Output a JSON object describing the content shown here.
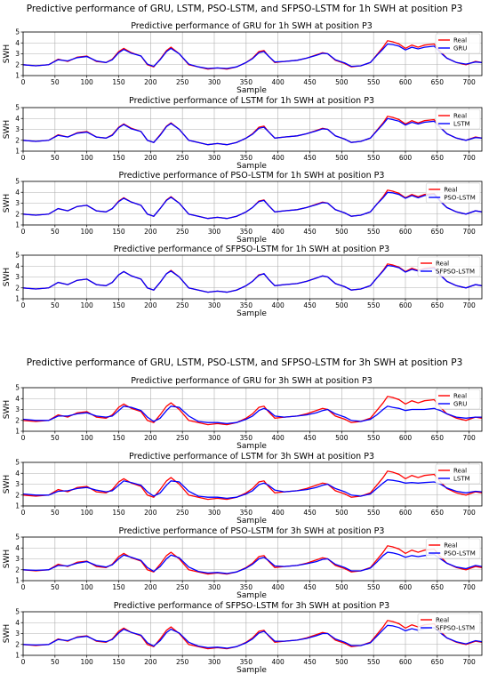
{
  "figures": [
    {
      "suptitle": "Predictive performance of GRU, LSTM, PSO-LSTM, and SFPSO-LSTM for 1h SWH at position P3",
      "panels": [
        {
          "title": "Predictive performance of GRU for 1h SWH at position P3",
          "legend": [
            "Real",
            "GRU"
          ]
        },
        {
          "title": "Predictive performance of LSTM for 1h SWH at position P3",
          "legend": [
            "Real",
            "LSTM"
          ]
        },
        {
          "title": "Predictive performance of PSO-LSTM for 1h SWH at position P3",
          "legend": [
            "Real",
            "PSO-LSTM"
          ]
        },
        {
          "title": "Predictive performance of SFPSO-LSTM for 1h SWH at position P3",
          "legend": [
            "Real",
            "SFPSO-LSTM"
          ]
        }
      ]
    },
    {
      "suptitle": "Predictive performance of GRU, LSTM, PSO-LSTM, and SFPSO-LSTM for 3h SWH at position P3",
      "panels": [
        {
          "title": "Predictive performance of GRU for 3h SWH at position P3",
          "legend": [
            "Real",
            "GRU"
          ]
        },
        {
          "title": "Predictive performance of LSTM for 3h SWH at position P3",
          "legend": [
            "Real",
            "LSTM"
          ]
        },
        {
          "title": "Predictive performance of PSO-LSTM for 3h SWH at position P3",
          "legend": [
            "Real",
            "PSO-LSTM"
          ]
        },
        {
          "title": "Predictive performance of SFPSO-LSTM for 3h SWH at position P3",
          "legend": [
            "Real",
            "SFPSO-LSTM"
          ]
        }
      ]
    }
  ],
  "chart_data": {
    "type": "line",
    "xlabel": "Sample",
    "ylabel": "SWH",
    "xlim": [
      0,
      720
    ],
    "ylim": [
      1,
      5
    ],
    "xticks": [
      0,
      50,
      100,
      150,
      200,
      250,
      300,
      350,
      400,
      450,
      500,
      550,
      600,
      650,
      700
    ],
    "yticks": [
      1,
      2,
      3,
      4,
      5
    ],
    "grid": true,
    "legend_position": "top-right",
    "colors": {
      "real": "#ff0000",
      "pred": "#0000ff"
    },
    "real": {
      "x": [
        0,
        20,
        40,
        55,
        70,
        85,
        100,
        115,
        130,
        140,
        150,
        158,
        170,
        185,
        195,
        205,
        215,
        225,
        232,
        245,
        260,
        275,
        290,
        305,
        320,
        335,
        350,
        360,
        370,
        378,
        385,
        395,
        410,
        430,
        445,
        460,
        470,
        478,
        490,
        505,
        515,
        530,
        545,
        555,
        565,
        572,
        580,
        590,
        600,
        610,
        620,
        630,
        645,
        655,
        665,
        680,
        695,
        710,
        720
      ],
      "y": [
        2.0,
        1.9,
        2.0,
        2.5,
        2.3,
        2.7,
        2.8,
        2.3,
        2.2,
        2.5,
        3.2,
        3.5,
        3.1,
        2.8,
        2.0,
        1.8,
        2.5,
        3.3,
        3.6,
        3.0,
        2.0,
        1.8,
        1.6,
        1.7,
        1.6,
        1.8,
        2.2,
        2.6,
        3.2,
        3.3,
        2.8,
        2.2,
        2.3,
        2.4,
        2.6,
        2.9,
        3.1,
        3.0,
        2.4,
        2.1,
        1.8,
        1.9,
        2.2,
        2.9,
        3.6,
        4.2,
        4.1,
        3.9,
        3.5,
        3.8,
        3.6,
        3.8,
        3.9,
        3.2,
        2.6,
        2.2,
        2.0,
        2.3,
        2.2
      ]
    },
    "series_1h": [
      {
        "name": "GRU",
        "y": [
          2.0,
          1.9,
          2.0,
          2.45,
          2.35,
          2.65,
          2.75,
          2.35,
          2.2,
          2.45,
          3.1,
          3.4,
          3.05,
          2.8,
          2.05,
          1.85,
          2.45,
          3.2,
          3.5,
          3.0,
          2.05,
          1.8,
          1.65,
          1.7,
          1.65,
          1.8,
          2.2,
          2.55,
          3.1,
          3.2,
          2.8,
          2.25,
          2.3,
          2.4,
          2.6,
          2.85,
          3.05,
          3.0,
          2.45,
          2.15,
          1.85,
          1.9,
          2.2,
          2.85,
          3.45,
          3.9,
          3.85,
          3.7,
          3.35,
          3.6,
          3.45,
          3.6,
          3.7,
          3.1,
          2.6,
          2.2,
          2.05,
          2.25,
          2.2
        ]
      },
      {
        "name": "LSTM",
        "y": [
          2.0,
          1.9,
          2.0,
          2.45,
          2.3,
          2.65,
          2.75,
          2.3,
          2.2,
          2.45,
          3.15,
          3.45,
          3.05,
          2.8,
          2.0,
          1.8,
          2.45,
          3.25,
          3.55,
          3.0,
          2.0,
          1.8,
          1.6,
          1.7,
          1.6,
          1.8,
          2.2,
          2.55,
          3.1,
          3.2,
          2.8,
          2.2,
          2.3,
          2.4,
          2.6,
          2.85,
          3.05,
          3.0,
          2.4,
          2.1,
          1.8,
          1.9,
          2.2,
          2.85,
          3.5,
          4.0,
          3.9,
          3.75,
          3.4,
          3.65,
          3.5,
          3.65,
          3.75,
          3.15,
          2.6,
          2.2,
          2.0,
          2.25,
          2.2
        ]
      },
      {
        "name": "PSO-LSTM",
        "y": [
          2.0,
          1.9,
          2.0,
          2.5,
          2.3,
          2.7,
          2.8,
          2.3,
          2.2,
          2.5,
          3.15,
          3.45,
          3.1,
          2.8,
          2.0,
          1.8,
          2.5,
          3.25,
          3.55,
          3.0,
          2.0,
          1.8,
          1.6,
          1.7,
          1.6,
          1.8,
          2.2,
          2.6,
          3.15,
          3.25,
          2.8,
          2.2,
          2.3,
          2.4,
          2.6,
          2.85,
          3.05,
          3.0,
          2.4,
          2.1,
          1.8,
          1.9,
          2.2,
          2.9,
          3.5,
          4.0,
          3.95,
          3.8,
          3.45,
          3.7,
          3.5,
          3.7,
          3.8,
          3.15,
          2.6,
          2.2,
          2.0,
          2.3,
          2.2
        ]
      },
      {
        "name": "SFPSO-LSTM",
        "y": [
          2.0,
          1.9,
          2.0,
          2.5,
          2.3,
          2.7,
          2.8,
          2.3,
          2.2,
          2.5,
          3.2,
          3.5,
          3.1,
          2.8,
          2.0,
          1.8,
          2.5,
          3.3,
          3.55,
          3.0,
          2.0,
          1.8,
          1.6,
          1.7,
          1.6,
          1.8,
          2.2,
          2.6,
          3.15,
          3.3,
          2.8,
          2.2,
          2.3,
          2.4,
          2.6,
          2.9,
          3.1,
          3.0,
          2.4,
          2.1,
          1.8,
          1.9,
          2.2,
          2.9,
          3.55,
          4.05,
          4.0,
          3.85,
          3.45,
          3.7,
          3.55,
          3.7,
          3.8,
          3.15,
          2.6,
          2.2,
          2.0,
          2.3,
          2.2
        ]
      }
    ],
    "series_3h": [
      {
        "name": "GRU",
        "y": [
          2.1,
          2.0,
          2.0,
          2.4,
          2.4,
          2.6,
          2.7,
          2.4,
          2.3,
          2.4,
          2.9,
          3.3,
          3.2,
          2.9,
          2.3,
          1.9,
          2.2,
          2.9,
          3.3,
          3.2,
          2.4,
          1.9,
          1.8,
          1.8,
          1.7,
          1.8,
          2.1,
          2.4,
          2.9,
          3.1,
          2.9,
          2.4,
          2.3,
          2.4,
          2.5,
          2.7,
          2.9,
          3.0,
          2.6,
          2.3,
          2.0,
          1.9,
          2.1,
          2.5,
          3.0,
          3.3,
          3.2,
          3.1,
          2.9,
          3.0,
          3.0,
          3.0,
          3.1,
          2.9,
          2.6,
          2.3,
          2.2,
          2.3,
          2.3
        ]
      },
      {
        "name": "LSTM",
        "y": [
          2.1,
          2.0,
          2.0,
          2.35,
          2.4,
          2.6,
          2.7,
          2.45,
          2.3,
          2.4,
          2.9,
          3.3,
          3.15,
          2.9,
          2.3,
          1.9,
          2.2,
          2.9,
          3.3,
          3.2,
          2.35,
          1.9,
          1.8,
          1.8,
          1.7,
          1.8,
          2.1,
          2.4,
          2.95,
          3.1,
          2.9,
          2.45,
          2.3,
          2.4,
          2.5,
          2.7,
          2.9,
          3.0,
          2.6,
          2.3,
          2.0,
          1.9,
          2.1,
          2.6,
          3.1,
          3.4,
          3.35,
          3.25,
          3.1,
          3.15,
          3.1,
          3.15,
          3.2,
          3.0,
          2.65,
          2.35,
          2.2,
          2.35,
          2.3
        ]
      },
      {
        "name": "PSO-LSTM",
        "y": [
          2.0,
          1.95,
          2.0,
          2.4,
          2.35,
          2.6,
          2.75,
          2.4,
          2.25,
          2.45,
          3.0,
          3.35,
          3.15,
          2.85,
          2.2,
          1.85,
          2.3,
          3.0,
          3.35,
          3.1,
          2.25,
          1.85,
          1.7,
          1.75,
          1.65,
          1.8,
          2.15,
          2.5,
          3.0,
          3.15,
          2.85,
          2.35,
          2.3,
          2.4,
          2.55,
          2.75,
          2.95,
          3.0,
          2.5,
          2.2,
          1.9,
          1.9,
          2.15,
          2.7,
          3.3,
          3.6,
          3.55,
          3.4,
          3.15,
          3.3,
          3.2,
          3.3,
          3.4,
          3.0,
          2.6,
          2.25,
          2.1,
          2.4,
          2.3
        ]
      },
      {
        "name": "SFPSO-LSTM",
        "y": [
          2.0,
          1.95,
          2.0,
          2.45,
          2.35,
          2.65,
          2.75,
          2.35,
          2.25,
          2.45,
          3.05,
          3.4,
          3.1,
          2.85,
          2.15,
          1.85,
          2.35,
          3.1,
          3.4,
          3.05,
          2.2,
          1.85,
          1.7,
          1.75,
          1.65,
          1.8,
          2.15,
          2.5,
          3.05,
          3.2,
          2.85,
          2.3,
          2.3,
          2.4,
          2.55,
          2.8,
          3.0,
          3.0,
          2.5,
          2.2,
          1.9,
          1.9,
          2.15,
          2.75,
          3.35,
          3.75,
          3.7,
          3.55,
          3.25,
          3.45,
          3.3,
          3.45,
          3.55,
          3.05,
          2.6,
          2.25,
          2.05,
          2.35,
          2.25
        ]
      }
    ]
  }
}
